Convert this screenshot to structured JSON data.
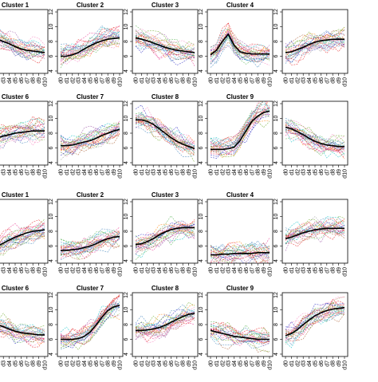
{
  "chart_data": {
    "type": "line",
    "x_tick_labels": [
      "d0",
      "d1",
      "d2",
      "d3",
      "d4",
      "d5",
      "d6",
      "d7",
      "d8",
      "d9",
      "d10"
    ],
    "ylim": [
      4,
      12
    ],
    "y_ticks": [
      4,
      6,
      8,
      10,
      12
    ],
    "series_colors": [
      "#e41a1c",
      "#377eb8",
      "#4daf4a",
      "#984ea3",
      "#ff7f00",
      "#a65628",
      "#f781bf",
      "#00bfc4",
      "#1f1fbf",
      "#999999",
      "#e7298a",
      "#66a61e"
    ],
    "centroid_color": "#000000",
    "panels": [
      {
        "title": "Cluster 1",
        "centroid": [
          8.6,
          8.5,
          8.3,
          8.0,
          7.7,
          7.3,
          7.0,
          6.8,
          6.7,
          6.6,
          6.5
        ]
      },
      {
        "title": "Cluster 2",
        "centroid": [
          6.0,
          6.0,
          6.2,
          6.5,
          7.0,
          7.4,
          7.8,
          8.1,
          8.3,
          8.4,
          8.5
        ]
      },
      {
        "title": "Cluster 3",
        "centroid": [
          8.5,
          8.3,
          8.1,
          7.8,
          7.5,
          7.2,
          7.0,
          6.8,
          6.7,
          6.6,
          6.5
        ]
      },
      {
        "title": "Cluster 4",
        "centroid": [
          6.2,
          6.8,
          8.0,
          9.0,
          7.5,
          6.6,
          6.4,
          6.3,
          6.3,
          6.3,
          6.3
        ]
      },
      {
        "title": "",
        "centroid": [
          6.5,
          6.6,
          6.9,
          7.2,
          7.6,
          7.9,
          8.1,
          8.2,
          8.3,
          8.3,
          8.3
        ]
      },
      {
        "title": "Cluster 6",
        "centroid": [
          7.0,
          7.2,
          7.4,
          7.6,
          7.8,
          8.0,
          8.1,
          8.2,
          8.3,
          8.3,
          8.3
        ]
      },
      {
        "title": "Cluster 7",
        "centroid": [
          6.3,
          6.3,
          6.4,
          6.6,
          6.8,
          7.0,
          7.3,
          7.7,
          8.0,
          8.3,
          8.5
        ]
      },
      {
        "title": "Cluster 8",
        "centroid": [
          9.8,
          9.8,
          9.6,
          9.2,
          8.6,
          8.0,
          7.4,
          6.9,
          6.5,
          6.2,
          5.9
        ]
      },
      {
        "title": "Cluster 9",
        "centroid": [
          5.8,
          5.8,
          5.8,
          5.9,
          6.1,
          7.0,
          8.3,
          9.6,
          10.3,
          10.8,
          11.0
        ]
      },
      {
        "title": "",
        "centroid": [
          8.8,
          8.6,
          8.2,
          7.8,
          7.3,
          6.9,
          6.6,
          6.4,
          6.3,
          6.2,
          6.2
        ]
      },
      {
        "title": "Cluster 1",
        "centroid": [
          5.5,
          5.7,
          6.0,
          6.4,
          6.8,
          7.2,
          7.5,
          7.8,
          8.0,
          8.1,
          8.2
        ]
      },
      {
        "title": "Cluster 2",
        "centroid": [
          5.4,
          5.4,
          5.5,
          5.6,
          5.8,
          6.0,
          6.3,
          6.7,
          7.0,
          7.2,
          7.3
        ]
      },
      {
        "title": "Cluster 3",
        "centroid": [
          6.2,
          6.3,
          6.6,
          7.0,
          7.5,
          7.9,
          8.2,
          8.4,
          8.5,
          8.5,
          8.5
        ]
      },
      {
        "title": "Cluster 4",
        "centroid": [
          4.8,
          4.8,
          4.9,
          4.9,
          5.0,
          5.0,
          5.0,
          5.0,
          5.1,
          5.1,
          5.1
        ]
      },
      {
        "title": "",
        "centroid": [
          7.0,
          7.2,
          7.5,
          7.8,
          8.0,
          8.2,
          8.3,
          8.4,
          8.4,
          8.4,
          8.4
        ]
      },
      {
        "title": "Cluster 6",
        "centroid": [
          8.5,
          8.3,
          8.0,
          7.7,
          7.4,
          7.1,
          6.9,
          6.8,
          6.7,
          6.6,
          6.6
        ]
      },
      {
        "title": "Cluster 7",
        "centroid": [
          6.0,
          6.0,
          6.0,
          6.1,
          6.4,
          7.0,
          7.9,
          9.0,
          9.9,
          10.4,
          10.6
        ]
      },
      {
        "title": "Cluster 8",
        "centroid": [
          7.2,
          7.2,
          7.3,
          7.4,
          7.6,
          7.9,
          8.3,
          8.7,
          9.1,
          9.4,
          9.5
        ]
      },
      {
        "title": "Cluster 9",
        "centroid": [
          7.2,
          7.0,
          6.8,
          6.6,
          6.4,
          6.3,
          6.2,
          6.1,
          6.0,
          6.0,
          6.0
        ]
      },
      {
        "title": "",
        "centroid": [
          6.5,
          6.8,
          7.3,
          8.0,
          8.6,
          9.2,
          9.6,
          9.9,
          10.1,
          10.2,
          10.3
        ]
      }
    ]
  }
}
